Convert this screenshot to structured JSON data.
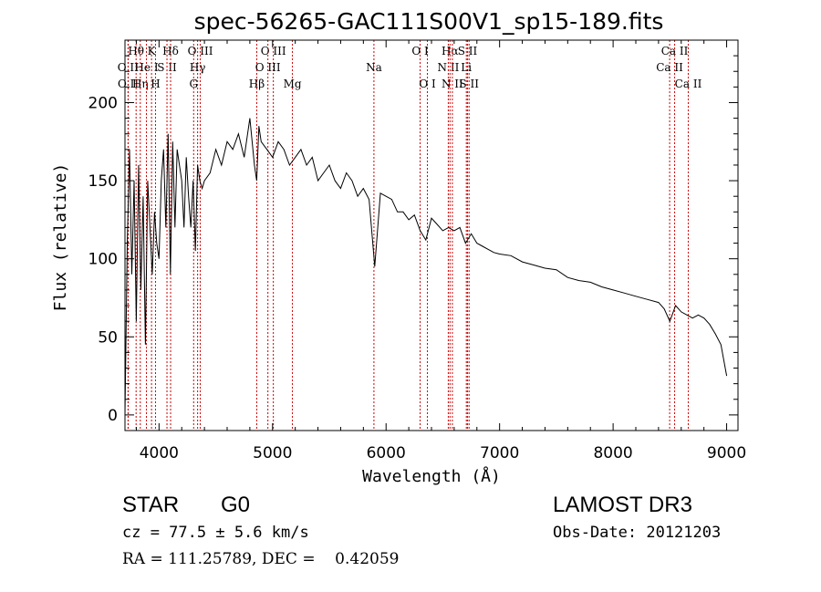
{
  "chart_data": {
    "type": "line",
    "title": "spec-56265-GAC111S00V1_sp15-189.fits",
    "xlabel": "Wavelength (Å)",
    "ylabel": "Flux (relative)",
    "xlim": [
      3700,
      9100
    ],
    "ylim": [
      -10,
      240
    ],
    "xticks": [
      4000,
      5000,
      6000,
      7000,
      8000,
      9000
    ],
    "yticks": [
      0,
      50,
      100,
      150,
      200
    ],
    "series": [
      {
        "name": "flux",
        "x": [
          3700,
          3720,
          3740,
          3760,
          3780,
          3800,
          3820,
          3840,
          3860,
          3880,
          3900,
          3920,
          3940,
          3960,
          3980,
          4000,
          4020,
          4040,
          4060,
          4080,
          4100,
          4120,
          4140,
          4160,
          4180,
          4200,
          4220,
          4240,
          4260,
          4280,
          4300,
          4320,
          4340,
          4360,
          4380,
          4400,
          4450,
          4500,
          4550,
          4600,
          4650,
          4700,
          4750,
          4800,
          4820,
          4840,
          4860,
          4880,
          4900,
          4950,
          5000,
          5050,
          5100,
          5150,
          5200,
          5250,
          5300,
          5350,
          5400,
          5450,
          5500,
          5550,
          5600,
          5650,
          5700,
          5750,
          5800,
          5850,
          5900,
          5950,
          6000,
          6050,
          6100,
          6150,
          6200,
          6250,
          6300,
          6350,
          6400,
          6450,
          6500,
          6550,
          6600,
          6650,
          6700,
          6750,
          6800,
          6850,
          6900,
          6950,
          7000,
          7100,
          7200,
          7300,
          7400,
          7500,
          7600,
          7700,
          7800,
          7900,
          8000,
          8100,
          8200,
          8300,
          8400,
          8450,
          8500,
          8550,
          8600,
          8650,
          8700,
          8750,
          8800,
          8850,
          8900,
          8950,
          9000
        ],
        "y": [
          0,
          110,
          170,
          90,
          150,
          60,
          160,
          80,
          140,
          45,
          150,
          120,
          90,
          130,
          110,
          100,
          150,
          170,
          120,
          180,
          90,
          175,
          120,
          170,
          160,
          150,
          120,
          165,
          140,
          120,
          150,
          105,
          160,
          150,
          145,
          150,
          155,
          170,
          160,
          175,
          170,
          180,
          165,
          190,
          175,
          160,
          150,
          185,
          175,
          170,
          165,
          175,
          170,
          160,
          165,
          170,
          160,
          165,
          150,
          155,
          160,
          150,
          145,
          155,
          150,
          140,
          145,
          138,
          95,
          142,
          140,
          138,
          130,
          130,
          125,
          128,
          118,
          112,
          126,
          122,
          118,
          120,
          118,
          120,
          110,
          116,
          110,
          108,
          106,
          104,
          103,
          102,
          98,
          96,
          94,
          93,
          88,
          86,
          85,
          82,
          80,
          78,
          76,
          74,
          72,
          68,
          60,
          70,
          66,
          64,
          62,
          64,
          62,
          58,
          52,
          45,
          25
        ]
      }
    ],
    "lines": [
      {
        "name": "O II",
        "x": 3727,
        "tier": 1
      },
      {
        "name": "O II",
        "x": 3729,
        "tier": 2
      },
      {
        "name": "Hθ",
        "x": 3798,
        "tier": 0
      },
      {
        "name": "Hη",
        "x": 3835,
        "tier": 2
      },
      {
        "name": "He I",
        "x": 3889,
        "tier": 1
      },
      {
        "name": "K",
        "x": 3934,
        "tier": 0
      },
      {
        "name": "S II",
        "x": 4070,
        "tier": 1
      },
      {
        "name": "H",
        "x": 3969,
        "tier": 2
      },
      {
        "name": "Hδ",
        "x": 4102,
        "tier": 0
      },
      {
        "name": "O III",
        "x": 4363,
        "tier": 0
      },
      {
        "name": "Hγ",
        "x": 4340,
        "tier": 1
      },
      {
        "name": "G",
        "x": 4305,
        "tier": 2
      },
      {
        "name": "Hβ",
        "x": 4861,
        "tier": 2
      },
      {
        "name": "O III",
        "x": 5007,
        "tier": 0
      },
      {
        "name": "O III",
        "x": 4959,
        "tier": 1
      },
      {
        "name": "Mg",
        "x": 5175,
        "tier": 2
      },
      {
        "name": "Na",
        "x": 5893,
        "tier": 1
      },
      {
        "name": "O I",
        "x": 6300,
        "tier": 0
      },
      {
        "name": "O I",
        "x": 6364,
        "tier": 2
      },
      {
        "name": "Hα",
        "x": 6563,
        "tier": 0
      },
      {
        "name": "N II",
        "x": 6548,
        "tier": 1
      },
      {
        "name": "N II",
        "x": 6584,
        "tier": 2
      },
      {
        "name": "S II",
        "x": 6717,
        "tier": 0
      },
      {
        "name": "Li",
        "x": 6707,
        "tier": 1
      },
      {
        "name": "S II",
        "x": 6731,
        "tier": 2
      },
      {
        "name": "Ca II",
        "x": 8542,
        "tier": 0
      },
      {
        "name": "Ca II",
        "x": 8498,
        "tier": 1
      },
      {
        "name": "Ca II",
        "x": 8662,
        "tier": 2
      }
    ]
  },
  "info": {
    "class": "STAR",
    "subclass": "G0",
    "survey": "LAMOST DR3",
    "cz": "cz = 77.5 ± 5.6 km/s",
    "obs_date": "Obs-Date: 20121203",
    "radec": "RA = 111.25789, DEC =    0.42059"
  },
  "colors": {
    "line_marker": "#cc0000",
    "spectrum": "#000000"
  }
}
